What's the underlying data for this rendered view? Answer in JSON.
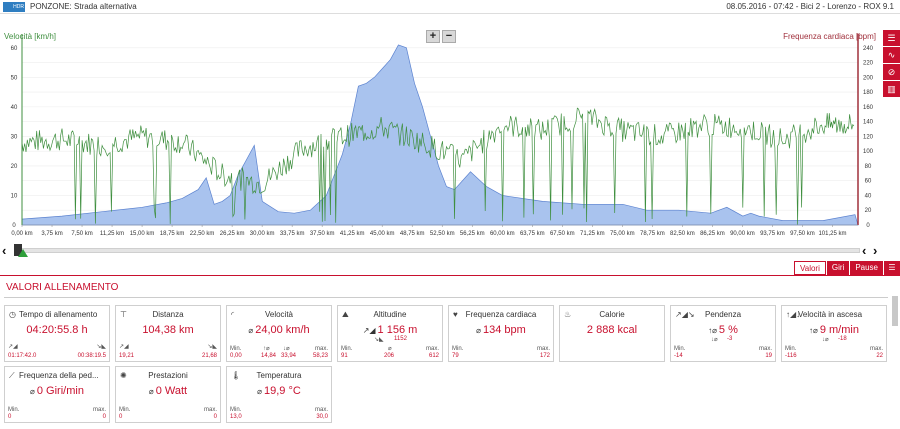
{
  "header": {
    "logo_text": "HDR",
    "title": "PONZONE: Strada alternativa",
    "info": "08.05.2016 - 07:42 - Bici 2 - Lorenzo - ROX 9.1"
  },
  "chart": {
    "left_label": "Velocità [km/h]",
    "right_label": "Frequenza cardiaca [bpm]",
    "zoom_in": "+",
    "zoom_out": "−",
    "colors": {
      "speed": "#3f8f3f",
      "altitude_fill": "#a9c3ee",
      "altitude_line": "#5b82cf",
      "hr_axis": "#a0303c"
    }
  },
  "chart_data": {
    "type": "area",
    "x_unit": "km",
    "x_ticks": [
      "0,00 km",
      "3,75 km",
      "7,50 km",
      "11,25 km",
      "15,00 km",
      "18,75 km",
      "22,50 km",
      "26,25 km",
      "30,00 km",
      "33,75 km",
      "37,50 km",
      "41,25 km",
      "45,00 km",
      "48,75 km",
      "52,50 km",
      "56,25 km",
      "60,00 km",
      "63,75 km",
      "67,50 km",
      "71,25 km",
      "75,00 km",
      "78,75 km",
      "82,50 km",
      "86,25 km",
      "90,00 km",
      "93,75 km",
      "97,50 km",
      "101,25 km"
    ],
    "left_axis": {
      "label": "Velocità [km/h]",
      "ticks": [
        0,
        10,
        20,
        30,
        40,
        50,
        60
      ],
      "ylim": [
        0,
        64
      ]
    },
    "right_axis": {
      "label": "Frequenza cardiaca [bpm]",
      "ticks": [
        0,
        20,
        40,
        60,
        80,
        100,
        120,
        140,
        160,
        180,
        200,
        220,
        240
      ],
      "ylim": [
        0,
        256
      ]
    },
    "altitude_fill_speed_units": {
      "x": [
        0,
        5,
        10,
        15,
        18,
        20,
        22,
        23,
        24,
        25,
        26,
        27,
        28,
        29,
        30,
        32,
        34,
        36,
        38,
        39,
        40,
        41,
        42,
        43,
        44,
        45,
        46,
        47,
        48,
        49,
        50,
        51,
        52,
        53,
        54,
        56,
        58,
        60,
        65,
        70,
        75,
        78,
        82,
        86,
        88,
        90,
        91,
        92,
        95,
        100,
        104
      ],
      "y": [
        2,
        3,
        4.5,
        6,
        7.5,
        9,
        12,
        16,
        7,
        8,
        10,
        17,
        22,
        27,
        8,
        4.5,
        4,
        5,
        10,
        17,
        24,
        34,
        47,
        48,
        50,
        53,
        56,
        61,
        60,
        48,
        40,
        30,
        20,
        13,
        12,
        18,
        13,
        10,
        8,
        7,
        7,
        5,
        5,
        4,
        6,
        3,
        4,
        3,
        1.5,
        1.5,
        3.5
      ]
    },
    "speed_series_sample": {
      "x": [
        0,
        5,
        10,
        15,
        20,
        25,
        30,
        35,
        40,
        45,
        50,
        55,
        60,
        65,
        70,
        75,
        80,
        85,
        90,
        95,
        100,
        104
      ],
      "y": [
        28,
        29,
        27,
        30,
        28,
        17,
        14,
        26,
        30,
        33,
        28,
        22,
        34,
        32,
        37,
        32,
        30,
        34,
        33,
        29,
        34,
        34
      ]
    }
  },
  "sidebar_tools": [
    "list-icon",
    "trend-icon",
    "no-icon",
    "bars-icon"
  ],
  "tabs": {
    "values": "Valori",
    "laps": "Giri",
    "pauses": "Pause"
  },
  "section": {
    "title": "VALORI ALLENAMENTO"
  },
  "cards": {
    "time": {
      "title": "Tempo di allenamento",
      "value": "04:20:55.8 h",
      "left": "01:17:42.0",
      "right": "00:38:19.5"
    },
    "distance": {
      "title": "Distanza",
      "value": "104,38 km",
      "left": "19,21",
      "right": "21,68"
    },
    "speed": {
      "title": "Velocità",
      "prefix": "⌀",
      "value": "24,00 km/h",
      "min_lbl": "Min.",
      "max_lbl": "max.",
      "min": "0,00",
      "a": "14,84",
      "b": "33,94",
      "max": "58,23"
    },
    "altitude": {
      "title": "Altitudine",
      "value": "1 156 m",
      "down": "1152",
      "min_lbl": "Min.",
      "max_lbl": "max.",
      "min": "91",
      "avg": "206",
      "max": "612"
    },
    "heart": {
      "title": "Frequenza cardiaca",
      "prefix": "⌀",
      "value": "134 bpm",
      "min_lbl": "Min.",
      "max_lbl": "max.",
      "min": "79",
      "max": "172"
    },
    "calories": {
      "title": "Calorie",
      "value": "2 888 kcal"
    },
    "slope": {
      "title": "Pendenza",
      "value": "5 %",
      "down": "-3",
      "min_lbl": "Min.",
      "max_lbl": "max.",
      "min": "-14",
      "max": "19"
    },
    "climb": {
      "title": "Velocità in ascesa",
      "prefix": "⌀",
      "value": "9 m/min",
      "down": "-18",
      "min_lbl": "Min.",
      "max_lbl": "max.",
      "min": "-116",
      "max": "22"
    },
    "cadence": {
      "title": "Frequenza della ped...",
      "prefix": "⌀",
      "value": "0 Giri/min",
      "min_lbl": "Min.",
      "max_lbl": "max.",
      "min": "0",
      "max": "0"
    },
    "power": {
      "title": "Prestazioni",
      "prefix": "⌀",
      "value": "0 Watt",
      "min_lbl": "Min.",
      "max_lbl": "max.",
      "min": "0",
      "max": "0"
    },
    "temperature": {
      "title": "Temperatura",
      "prefix": "⌀",
      "value": "19,9 °C",
      "min_lbl": "Min.",
      "max_lbl": "max.",
      "min": "13,0",
      "max": "30,0"
    }
  }
}
